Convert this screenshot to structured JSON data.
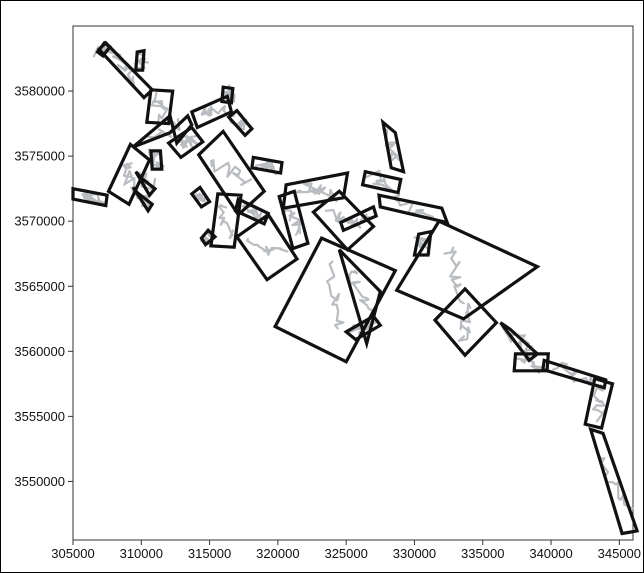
{
  "chart_data": {
    "type": "scatter",
    "title": "",
    "xlabel": "",
    "ylabel": "",
    "xlim": [
      305000,
      346000
    ],
    "ylim": [
      3545500,
      3585000
    ],
    "x_ticks": [
      305000,
      310000,
      315000,
      320000,
      325000,
      330000,
      335000,
      340000,
      345000
    ],
    "y_ticks": [
      3550000,
      3555000,
      3560000,
      3565000,
      3570000,
      3575000,
      3580000
    ],
    "x_tick_labels": [
      "305000",
      "310000",
      "315000",
      "320000",
      "325000",
      "330000",
      "335000",
      "340000",
      "345000"
    ],
    "y_tick_labels": [
      "3550000",
      "3555000",
      "3560000",
      "3565000",
      "3570000",
      "3575000",
      "3580000"
    ],
    "grid": false,
    "legend": "none",
    "colors": {
      "rectangles": "#111111",
      "traces": "#b9bcc0",
      "axes": "#333333"
    },
    "rectangles": [
      {
        "corners": [
          [
            306800,
            3583000
          ],
          [
            307300,
            3583700
          ],
          [
            307700,
            3583400
          ],
          [
            307200,
            3582700
          ]
        ]
      },
      {
        "corners": [
          [
            307400,
            3583700
          ],
          [
            310800,
            3580100
          ],
          [
            310200,
            3579500
          ],
          [
            306900,
            3583200
          ]
        ]
      },
      {
        "corners": [
          [
            309700,
            3583000
          ],
          [
            310200,
            3583100
          ],
          [
            310100,
            3581600
          ],
          [
            309600,
            3581600
          ]
        ]
      },
      {
        "corners": [
          [
            310700,
            3580100
          ],
          [
            312300,
            3580000
          ],
          [
            312000,
            3577500
          ],
          [
            310400,
            3577600
          ]
        ]
      },
      {
        "corners": [
          [
            309200,
            3575900
          ],
          [
            307600,
            3572300
          ],
          [
            309100,
            3571300
          ],
          [
            310600,
            3574700
          ]
        ]
      },
      {
        "corners": [
          [
            309400,
            3575700
          ],
          [
            312100,
            3576800
          ],
          [
            313400,
            3578100
          ],
          [
            313700,
            3577400
          ],
          [
            312600,
            3576000
          ],
          [
            312100,
            3578100
          ],
          [
            309400,
            3575700
          ]
        ]
      },
      {
        "corners": [
          [
            309600,
            3573800
          ],
          [
            310000,
            3573300
          ],
          [
            311000,
            3572500
          ],
          [
            310600,
            3572000
          ]
        ]
      },
      {
        "corners": [
          [
            309400,
            3572600
          ],
          [
            309700,
            3572200
          ],
          [
            310800,
            3571300
          ],
          [
            310500,
            3570800
          ]
        ]
      },
      {
        "corners": [
          [
            310700,
            3575400
          ],
          [
            311400,
            3575400
          ],
          [
            311500,
            3574000
          ],
          [
            310800,
            3574000
          ]
        ]
      },
      {
        "corners": [
          [
            305000,
            3572500
          ],
          [
            307500,
            3572000
          ],
          [
            307400,
            3571200
          ],
          [
            305000,
            3571700
          ]
        ]
      },
      {
        "corners": [
          [
            312000,
            3576000
          ],
          [
            313700,
            3577200
          ],
          [
            314500,
            3576100
          ],
          [
            312900,
            3574900
          ]
        ]
      },
      {
        "corners": [
          [
            313700,
            3578400
          ],
          [
            316300,
            3579600
          ],
          [
            316600,
            3578400
          ],
          [
            314100,
            3577200
          ]
        ]
      },
      {
        "corners": [
          [
            316000,
            3580300
          ],
          [
            316700,
            3580200
          ],
          [
            316600,
            3579100
          ],
          [
            315900,
            3579200
          ]
        ]
      },
      {
        "corners": [
          [
            316400,
            3578000
          ],
          [
            317000,
            3578500
          ],
          [
            318100,
            3577100
          ],
          [
            317600,
            3576600
          ]
        ]
      },
      {
        "corners": [
          [
            314200,
            3575100
          ],
          [
            316000,
            3576900
          ],
          [
            319000,
            3572300
          ],
          [
            317100,
            3570500
          ]
        ]
      },
      {
        "corners": [
          [
            318200,
            3574900
          ],
          [
            320300,
            3574500
          ],
          [
            320200,
            3573700
          ],
          [
            318100,
            3574100
          ]
        ]
      },
      {
        "corners": [
          [
            313700,
            3572100
          ],
          [
            314300,
            3572600
          ],
          [
            315000,
            3571500
          ],
          [
            314400,
            3571100
          ]
        ]
      },
      {
        "corners": [
          [
            315600,
            3572100
          ],
          [
            317300,
            3572000
          ],
          [
            316800,
            3568000
          ],
          [
            315100,
            3568100
          ]
        ]
      },
      {
        "corners": [
          [
            317100,
            3571700
          ],
          [
            319300,
            3570600
          ],
          [
            319000,
            3569800
          ],
          [
            316900,
            3570800
          ]
        ]
      },
      {
        "corners": [
          [
            314900,
            3569300
          ],
          [
            315400,
            3568800
          ],
          [
            314700,
            3568200
          ],
          [
            314400,
            3568700
          ]
        ]
      },
      {
        "corners": [
          [
            317000,
            3568800
          ],
          [
            319300,
            3570500
          ],
          [
            321400,
            3567100
          ],
          [
            319200,
            3565500
          ]
        ]
      },
      {
        "corners": [
          [
            320600,
            3572800
          ],
          [
            325100,
            3573700
          ],
          [
            324800,
            3571800
          ],
          [
            320400,
            3571000
          ]
        ]
      },
      {
        "corners": [
          [
            320100,
            3571900
          ],
          [
            321200,
            3572300
          ],
          [
            322200,
            3568300
          ],
          [
            321100,
            3567900
          ]
        ]
      },
      {
        "corners": [
          [
            322600,
            3570700
          ],
          [
            325100,
            3567800
          ],
          [
            327000,
            3569600
          ],
          [
            324500,
            3572300
          ]
        ]
      },
      {
        "corners": [
          [
            324600,
            3569900
          ],
          [
            327000,
            3571100
          ],
          [
            327200,
            3570400
          ],
          [
            324800,
            3569300
          ]
        ]
      },
      {
        "corners": [
          [
            326400,
            3573800
          ],
          [
            329000,
            3573200
          ],
          [
            328800,
            3572200
          ],
          [
            326200,
            3572800
          ]
        ]
      },
      {
        "corners": [
          [
            327700,
            3577600
          ],
          [
            328600,
            3576800
          ],
          [
            329200,
            3573800
          ],
          [
            328300,
            3574100
          ]
        ]
      },
      {
        "corners": [
          [
            327400,
            3572000
          ],
          [
            332000,
            3571000
          ],
          [
            332400,
            3569900
          ],
          [
            327500,
            3571100
          ]
        ]
      },
      {
        "corners": [
          [
            330300,
            3569000
          ],
          [
            331200,
            3569200
          ],
          [
            331000,
            3567400
          ],
          [
            330000,
            3567400
          ]
        ]
      },
      {
        "corners": [
          [
            324500,
            3567800
          ],
          [
            327500,
            3564600
          ],
          [
            327000,
            3562600
          ],
          [
            326500,
            3560600
          ]
        ]
      },
      {
        "corners": [
          [
            325000,
            3561500
          ],
          [
            327000,
            3562700
          ],
          [
            327500,
            3562000
          ],
          [
            325700,
            3560900
          ]
        ]
      },
      {
        "corners": [
          [
            323200,
            3568700
          ],
          [
            328600,
            3566200
          ],
          [
            325000,
            3559200
          ],
          [
            319800,
            3561900
          ]
        ]
      },
      {
        "corners": [
          [
            331800,
            3570000
          ],
          [
            339000,
            3566500
          ],
          [
            333600,
            3562500
          ],
          [
            328700,
            3564700
          ]
        ]
      },
      {
        "corners": [
          [
            333700,
            3564800
          ],
          [
            336000,
            3562200
          ],
          [
            333700,
            3559700
          ],
          [
            331500,
            3562400
          ]
        ]
      },
      {
        "corners": [
          [
            336300,
            3562200
          ],
          [
            337000,
            3561700
          ],
          [
            339000,
            3559800
          ],
          [
            338400,
            3559300
          ]
        ]
      },
      {
        "corners": [
          [
            337400,
            3559800
          ],
          [
            339800,
            3559800
          ],
          [
            339700,
            3558500
          ],
          [
            337300,
            3558500
          ]
        ]
      },
      {
        "corners": [
          [
            339500,
            3559300
          ],
          [
            344000,
            3557800
          ],
          [
            343900,
            3557200
          ],
          [
            339400,
            3558600
          ]
        ]
      },
      {
        "corners": [
          [
            343200,
            3557900
          ],
          [
            344500,
            3557500
          ],
          [
            343700,
            3554100
          ],
          [
            342500,
            3554400
          ]
        ]
      },
      {
        "corners": [
          [
            342900,
            3554000
          ],
          [
            343800,
            3553700
          ],
          [
            346300,
            3546200
          ],
          [
            345200,
            3546000
          ]
        ]
      }
    ]
  }
}
